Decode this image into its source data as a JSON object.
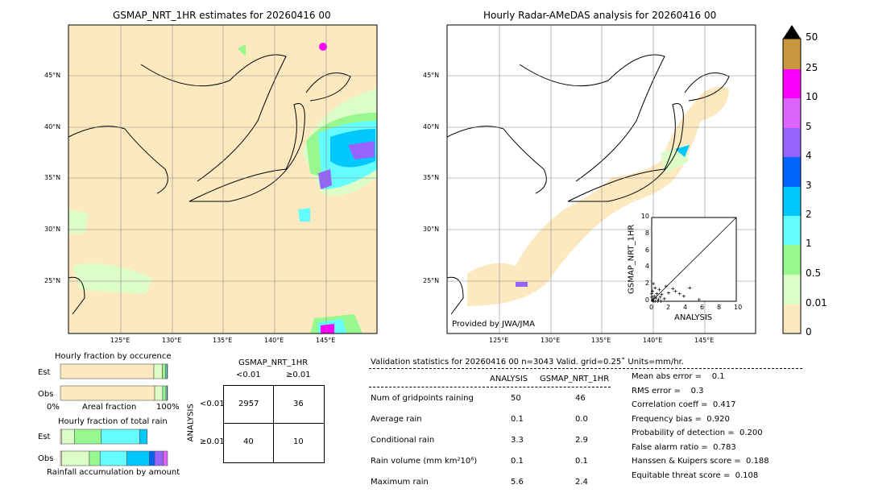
{
  "left_map": {
    "title": "GSMAP_NRT_1HR estimates for 20260416 00"
  },
  "right_map": {
    "title": "Hourly Radar-AMeDAS analysis for 20260416 00",
    "credit": "Provided by JWA/JMA"
  },
  "lat_labels": [
    "45°N",
    "40°N",
    "35°N",
    "30°N",
    "25°N"
  ],
  "lon_labels": [
    "125°E",
    "130°E",
    "135°E",
    "140°E",
    "145°E"
  ],
  "colorbar": {
    "ticks": [
      "50",
      "25",
      "10",
      "5",
      "4",
      "3",
      "2",
      "1",
      "0.5",
      "0.01",
      "0"
    ],
    "colors": [
      "#c8963c",
      "#fc00fc",
      "#dc64fc",
      "#9664fc",
      "#0064fc",
      "#00c8fc",
      "#64fcfc",
      "#98f890",
      "#dcfcc8",
      "#fde9c0"
    ],
    "extend_color": "#000000"
  },
  "chart_data": [
    {
      "type": "scatter",
      "title": "",
      "xlabel": "ANALYSIS",
      "ylabel": "GSMAP_NRT_1HR",
      "xlim": [
        0,
        10
      ],
      "ylim": [
        0,
        10
      ],
      "ticks": [
        "0",
        "2",
        "4",
        "6",
        "8",
        "10"
      ],
      "points": [
        [
          0.1,
          0.1
        ],
        [
          0.2,
          0.3
        ],
        [
          0.3,
          0.6
        ],
        [
          0.1,
          1.2
        ],
        [
          0.2,
          2.1
        ],
        [
          0.4,
          1.6
        ],
        [
          0.5,
          0.4
        ],
        [
          0.8,
          0.2
        ],
        [
          1.0,
          0.5
        ],
        [
          1.2,
          0.8
        ],
        [
          1.5,
          0.3
        ],
        [
          2.0,
          1.0
        ],
        [
          2.5,
          1.5
        ],
        [
          2.8,
          1.2
        ],
        [
          3.3,
          0.9
        ],
        [
          3.8,
          0.6
        ],
        [
          4.5,
          1.6
        ],
        [
          1.7,
          1.8
        ],
        [
          0.6,
          0.9
        ],
        [
          0.9,
          1.4
        ],
        [
          0.2,
          0.0
        ],
        [
          0.4,
          0.0
        ],
        [
          0.7,
          0.0
        ],
        [
          1.1,
          0.0
        ],
        [
          0.0,
          0.5
        ],
        [
          0.0,
          0.9
        ],
        [
          5.6,
          0.2
        ]
      ]
    },
    {
      "type": "bar",
      "title": "Hourly fraction by occurence",
      "xlabel": "Areal fraction",
      "x_start": "0%",
      "x_end": "100%",
      "rows": [
        {
          "name": "Est",
          "values": [
            0.872,
            0.08,
            0.03,
            0.012,
            0.006
          ]
        },
        {
          "name": "Obs",
          "values": [
            0.88,
            0.074,
            0.03,
            0.01,
            0.006
          ]
        }
      ],
      "colors": [
        "#fde9c0",
        "#dcfcc8",
        "#98f890",
        "#64fcfc",
        "#1e6448"
      ]
    },
    {
      "type": "bar",
      "title": "Hourly fraction of total rain",
      "xlabel": "Rainfall accumulation by amount",
      "rows": [
        {
          "name": "Est",
          "values": [
            0.01,
            0.12,
            0.25,
            0.36,
            0.07
          ]
        },
        {
          "name": "Obs",
          "values": [
            0.01,
            0.26,
            0.1,
            0.25,
            0.21,
            0.05,
            0.08,
            0.04
          ]
        }
      ],
      "colors_est": [
        "#fde9c0",
        "#dcfcc8",
        "#98f890",
        "#64fcfc",
        "#00c8fc"
      ],
      "colors_obs": [
        "#fde9c0",
        "#dcfcc8",
        "#98f890",
        "#64fcfc",
        "#00c8fc",
        "#0064fc",
        "#9664fc",
        "#dc64fc"
      ]
    }
  ],
  "contingency": {
    "title": "GSMAP_NRT_1HR",
    "col_labels": [
      "<0.01",
      "≥0.01"
    ],
    "row_axis": "ANALYSIS",
    "row_labels": [
      "<0.01",
      "≥0.01"
    ],
    "cells": [
      [
        "2957",
        "36"
      ],
      [
        "40",
        "10"
      ]
    ]
  },
  "stats": {
    "header": "Validation statistics for 20260416 00  n=3043 Valid. grid=0.25˚ Units=mm/hr.",
    "col_headers": [
      "ANALYSIS",
      "GSMAP_NRT_1HR"
    ],
    "rows": [
      {
        "label": "Num of gridpoints raining",
        "a": "50",
        "b": "46"
      },
      {
        "label": "Average rain",
        "a": "0.1",
        "b": "0.0"
      },
      {
        "label": "Conditional rain",
        "a": "3.3",
        "b": "2.9"
      },
      {
        "label": "Rain volume (mm km²10⁶)",
        "a": "0.1",
        "b": "0.1"
      },
      {
        "label": "Maximum rain",
        "a": "5.6",
        "b": "2.4"
      }
    ],
    "scores": [
      "Mean abs error =    0.1",
      "RMS error =    0.3",
      "Correlation coeff =  0.417",
      "Frequency bias =  0.920",
      "Probability of detection =  0.200",
      "False alarm ratio =  0.783",
      "Hanssen & Kuipers score =  0.188",
      "Equitable threat score =  0.108"
    ]
  }
}
